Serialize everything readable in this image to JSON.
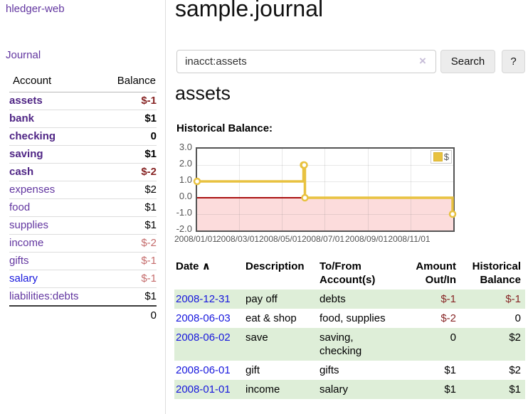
{
  "app": {
    "brand": "hledger-web",
    "nav_journal": "Journal"
  },
  "sidebar": {
    "table_headers": {
      "account": "Account",
      "balance": "Balance"
    },
    "accounts": [
      {
        "name": "assets",
        "balance": "$-1"
      },
      {
        "name": "bank",
        "balance": "$1"
      },
      {
        "name": "checking",
        "balance": "0"
      },
      {
        "name": "saving",
        "balance": "$1"
      },
      {
        "name": "cash",
        "balance": "$-2"
      },
      {
        "name": "expenses",
        "balance": "$2"
      },
      {
        "name": "food",
        "balance": "$1"
      },
      {
        "name": "supplies",
        "balance": "$1"
      },
      {
        "name": "income",
        "balance": "$-2"
      },
      {
        "name": "gifts",
        "balance": "$-1"
      },
      {
        "name": "salary",
        "balance": "$-1"
      },
      {
        "name": "liabilities:debts",
        "balance": "$1"
      }
    ],
    "total": "0"
  },
  "main": {
    "title": "sample.journal",
    "search": {
      "value": "inacct:assets",
      "clear_icon": "×",
      "search_label": "Search",
      "help_label": "?"
    },
    "account_heading": "assets",
    "chart_title": "Historical Balance:"
  },
  "register": {
    "headers": {
      "date": "Date",
      "sort_arrow": "∧",
      "description": "Description",
      "accounts": "To/From Account(s)",
      "amount": "Amount Out/In",
      "balance": "Historical Balance"
    },
    "rows": [
      {
        "date": "2008-12-31",
        "description": "pay off",
        "accounts": "debts",
        "amount": "$-1",
        "balance": "$-1"
      },
      {
        "date": "2008-06-03",
        "description": "eat & shop",
        "accounts": "food, supplies",
        "amount": "$-2",
        "balance": "0"
      },
      {
        "date": "2008-06-02",
        "description": "save",
        "accounts": "saving, checking",
        "amount": "0",
        "balance": "$2"
      },
      {
        "date": "2008-06-01",
        "description": "gift",
        "accounts": "gifts",
        "amount": "$1",
        "balance": "$2"
      },
      {
        "date": "2008-01-01",
        "description": "income",
        "accounts": "salary",
        "amount": "$1",
        "balance": "$1"
      }
    ]
  },
  "chart_data": {
    "type": "line",
    "step": true,
    "title": "Historical Balance",
    "legend_label": "$",
    "legend_position": "top-right",
    "grid": true,
    "x": [
      "2008-01-01",
      "2008-06-01",
      "2008-06-02",
      "2008-06-03",
      "2008-12-31"
    ],
    "y": [
      1,
      2,
      2,
      0,
      -1
    ],
    "xlim": [
      "2008-01-01",
      "2009-01-01"
    ],
    "ylim": [
      -2,
      3
    ],
    "xticks": [
      "2008/01/01",
      "2008/03/01",
      "2008/05/01",
      "2008/07/01",
      "2008/09/01",
      "2008/11/01"
    ],
    "yticks": [
      "3.0",
      "2.0",
      "1.0",
      "0.0",
      "-1.0",
      "-2.0"
    ],
    "line_color": "#e8c240",
    "marker_fill": "#ffffff",
    "negative_region_color": "#fcdcdc",
    "zero_line_color": "#aa1111"
  },
  "colors": {
    "link_purple": "#6236a0",
    "account_bold_purple": "#4f2585",
    "link_blue": "#1717dd",
    "negative": "#872525",
    "negative_dim": "#c56c6c",
    "row_stripe_green": "#deeed8",
    "chart_border": "#545454",
    "tick_text": "#545454",
    "chart_gold": "#e8c240"
  }
}
